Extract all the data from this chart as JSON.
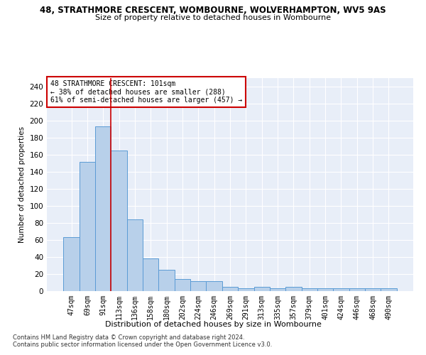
{
  "title_line1": "48, STRATHMORE CRESCENT, WOMBOURNE, WOLVERHAMPTON, WV5 9AS",
  "title_line2": "Size of property relative to detached houses in Wombourne",
  "xlabel": "Distribution of detached houses by size in Wombourne",
  "ylabel": "Number of detached properties",
  "categories": [
    "47sqm",
    "69sqm",
    "91sqm",
    "113sqm",
    "136sqm",
    "158sqm",
    "180sqm",
    "202sqm",
    "224sqm",
    "246sqm",
    "269sqm",
    "291sqm",
    "313sqm",
    "335sqm",
    "357sqm",
    "379sqm",
    "401sqm",
    "424sqm",
    "446sqm",
    "468sqm",
    "490sqm"
  ],
  "values": [
    63,
    152,
    193,
    165,
    84,
    38,
    25,
    14,
    12,
    12,
    5,
    3,
    5,
    3,
    5,
    3,
    3,
    3,
    3,
    3,
    3
  ],
  "bar_color": "#b8d0ea",
  "bar_edge_color": "#5b9bd5",
  "vline_color": "#cc0000",
  "vline_x": 2.5,
  "annotation_text": "48 STRATHMORE CRESCENT: 101sqm\n← 38% of detached houses are smaller (288)\n61% of semi-detached houses are larger (457) →",
  "annotation_box_color": "white",
  "annotation_box_edge_color": "#cc0000",
  "footer_line1": "Contains HM Land Registry data © Crown copyright and database right 2024.",
  "footer_line2": "Contains public sector information licensed under the Open Government Licence v3.0.",
  "ylim": [
    0,
    250
  ],
  "yticks": [
    0,
    20,
    40,
    60,
    80,
    100,
    120,
    140,
    160,
    180,
    200,
    220,
    240
  ],
  "bg_color": "#e8eef8",
  "grid_color": "white",
  "figsize": [
    6.0,
    5.0
  ],
  "dpi": 100
}
